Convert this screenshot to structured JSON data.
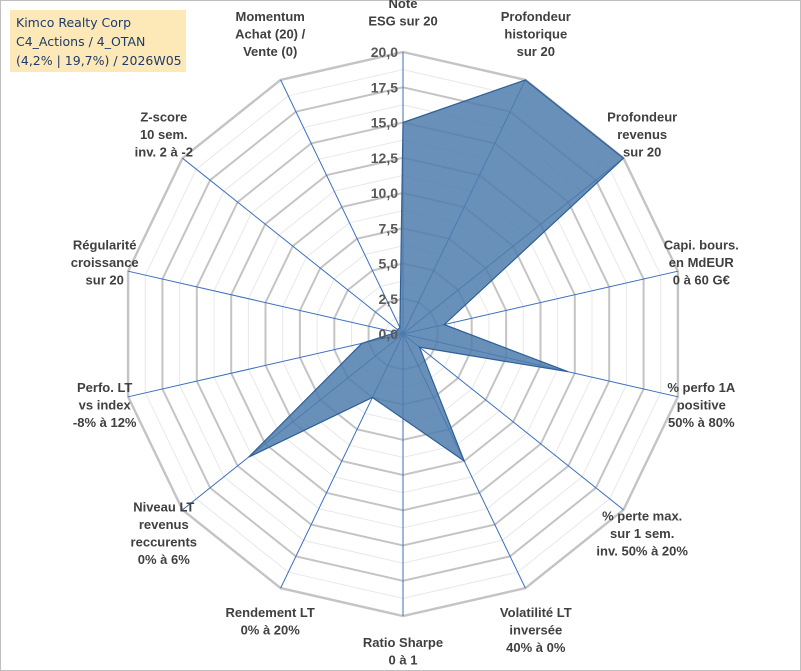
{
  "title_box": {
    "line1": "Kimco Realty Corp",
    "line2": "C4_Actions / 4_OTAN",
    "line3": "(4,2% | 19,7%) / 2026W05"
  },
  "chart_data": {
    "type": "radar",
    "title": "",
    "r_range": [
      0,
      20
    ],
    "r_ticks": [
      "0,0",
      "2,5",
      "5,0",
      "7,5",
      "10,0",
      "12,5",
      "15,0",
      "17,5",
      "20,0"
    ],
    "grid": true,
    "legend": "none",
    "axes": [
      [
        "Note",
        "ESG sur 20"
      ],
      [
        "Profondeur",
        "historique",
        "sur 20"
      ],
      [
        "Profondeur",
        "revenus",
        "sur 20"
      ],
      [
        "Capi. bours.",
        "en MdEUR",
        "0 à 60 G€"
      ],
      [
        "% perfo 1A",
        "positive",
        "50% à 80%"
      ],
      [
        "% perte max.",
        "sur 1 sem.",
        "inv. 50% à 20%"
      ],
      [
        "Volatilité LT",
        "inversée",
        "40% à 0%"
      ],
      [
        "Ratio Sharpe",
        "0 à 1"
      ],
      [
        "Rendement LT",
        "0% à 20%"
      ],
      [
        "Niveau LT",
        "revenus",
        "reccurents",
        "0% à 6%"
      ],
      [
        "Perfo. LT",
        "vs index",
        "-8% à 12%"
      ],
      [
        "Régularité",
        "croissance",
        "sur 20"
      ],
      [
        "Z-score",
        "10 sem.",
        "inv. 2 à -2"
      ],
      [
        "Momentum",
        "Achat (20) /",
        "Vente (0)"
      ]
    ],
    "series": [
      {
        "values": [
          15.0,
          20.0,
          20.0,
          3.0,
          12.0,
          1.5,
          10.0,
          6.0,
          5.0,
          14.0,
          3.0,
          0.5,
          0.5,
          0.5
        ]
      }
    ],
    "colors": {
      "fill": "#4f7cab",
      "stroke": "#2e5f98",
      "grid": "#c8c8c8",
      "spoke": "#3a6fc0"
    }
  }
}
